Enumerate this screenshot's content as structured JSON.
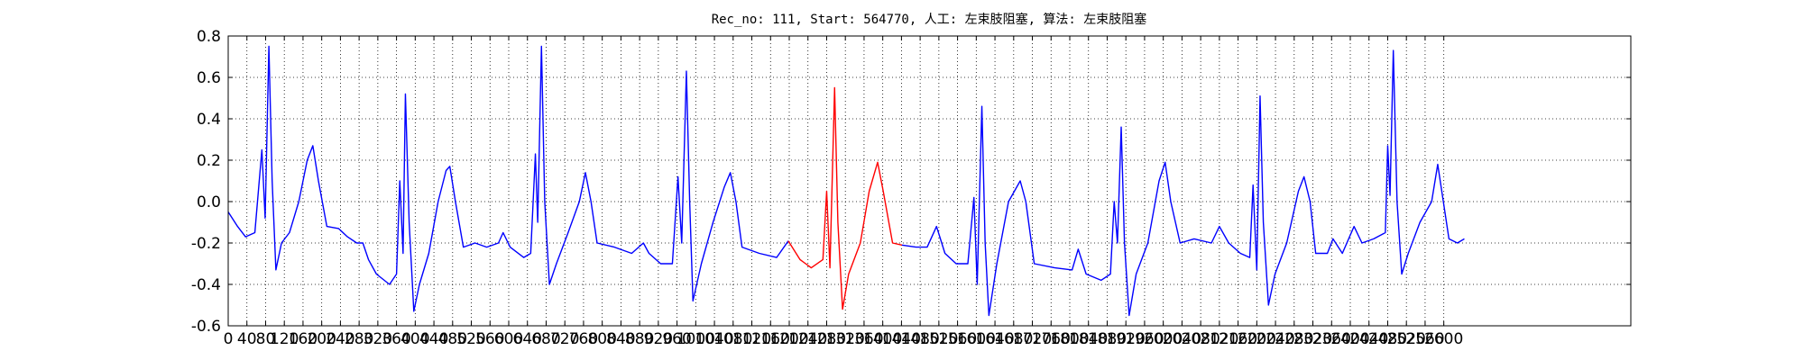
{
  "chart_data": {
    "type": "line",
    "title": "Rec_no: 111, Start: 564770, 人工: 左束肢阻塞, 算法: 左束肢阻塞",
    "xlim": [
      0,
      3000
    ],
    "ylim": [
      -0.6,
      0.8
    ],
    "xticks": [
      0,
      40,
      80,
      120,
      160,
      200,
      240,
      280,
      320,
      360,
      400,
      440,
      480,
      520,
      560,
      600,
      640,
      680,
      720,
      760,
      800,
      840,
      880,
      920,
      960,
      1000,
      1040,
      1080,
      1120,
      1160,
      1200,
      1240,
      1280,
      1320,
      1360,
      1400,
      1440,
      1480,
      1520,
      1560,
      1600,
      1640,
      1680,
      1720,
      1760,
      1800,
      1840,
      1880,
      1920,
      1960,
      2000,
      2040,
      2080,
      2120,
      2160,
      2200,
      2240,
      2280,
      2320,
      2360,
      2400,
      2440,
      2480,
      2520,
      2560,
      2600
    ],
    "yticks": [
      -0.6,
      -0.4,
      -0.2,
      {
        "value": 0,
        "label": "0.0"
      },
      0.2,
      0.4,
      0.6,
      0.8
    ],
    "grid": true,
    "series": [
      {
        "color": "#0000ff",
        "x": [
          0,
          20,
          37,
          57,
          72,
          79,
          87,
          94,
          102,
          114,
          131,
          151,
          169,
          181,
          193,
          211,
          236,
          255,
          275,
          288,
          300,
          317,
          345,
          360,
          367,
          374,
          379,
          387,
          397,
          409,
          429,
          449,
          466,
          474,
          486,
          503,
          528,
          553,
          578,
          588,
          603,
          632,
          647,
          657,
          662,
          670,
          677,
          687,
          702,
          727,
          751,
          764,
          776,
          789,
          826,
          863,
          888,
          900,
          925,
          950,
          962,
          970,
          980,
          987,
          994,
          1012,
          1037,
          1061,
          1074,
          1086,
          1099,
          1136,
          1173,
          1198,
          1320,
          1441,
          1471,
          1495,
          1515,
          1533,
          1557,
          1582,
          1595,
          1602,
          1612,
          1619,
          1627,
          1644,
          1669,
          1694,
          1706,
          1724,
          1768,
          1805,
          1818,
          1835,
          1867,
          1887,
          1895,
          1902,
          1910,
          1917,
          1927,
          1942,
          1967,
          1991,
          2004,
          2016,
          2036,
          2066,
          2103,
          2120,
          2140,
          2165,
          2185,
          2192,
          2200,
          2207,
          2214,
          2225,
          2239,
          2264,
          2289,
          2301,
          2314,
          2326,
          2351,
          2363,
          2383,
          2408,
          2425,
          2450,
          2475,
          2480,
          2485,
          2492,
          2500,
          2510,
          2524,
          2549,
          2574,
          2587,
          2599,
          2611,
          2629,
          2644
        ],
        "values": [
          -0.05,
          -0.12,
          -0.17,
          -0.15,
          0.25,
          -0.08,
          0.75,
          0.1,
          -0.33,
          -0.2,
          -0.15,
          0.0,
          0.2,
          0.27,
          0.1,
          -0.12,
          -0.13,
          -0.17,
          -0.2,
          -0.2,
          -0.28,
          -0.35,
          -0.4,
          -0.35,
          0.1,
          -0.25,
          0.52,
          -0.1,
          -0.53,
          -0.4,
          -0.25,
          0.0,
          0.15,
          0.17,
          0.0,
          -0.22,
          -0.2,
          -0.22,
          -0.2,
          -0.15,
          -0.22,
          -0.27,
          -0.25,
          0.23,
          -0.1,
          0.75,
          0.0,
          -0.4,
          -0.3,
          -0.15,
          0.0,
          0.14,
          0.0,
          -0.2,
          -0.22,
          -0.25,
          -0.2,
          -0.25,
          -0.3,
          -0.3,
          0.12,
          -0.2,
          0.63,
          0.0,
          -0.48,
          -0.3,
          -0.1,
          0.07,
          0.14,
          0.0,
          -0.22,
          -0.25,
          -0.27,
          -0.19,
          null,
          -0.21,
          -0.22,
          -0.22,
          -0.12,
          -0.25,
          -0.3,
          -0.3,
          0.02,
          -0.4,
          0.46,
          -0.2,
          -0.55,
          -0.3,
          0.0,
          0.1,
          0.0,
          -0.3,
          -0.32,
          -0.33,
          -0.23,
          -0.35,
          -0.38,
          -0.35,
          0.0,
          -0.2,
          0.36,
          -0.2,
          -0.55,
          -0.35,
          -0.2,
          0.1,
          0.19,
          0.0,
          -0.2,
          -0.18,
          -0.2,
          -0.12,
          -0.2,
          -0.25,
          -0.27,
          0.08,
          -0.33,
          0.51,
          -0.1,
          -0.5,
          -0.35,
          -0.2,
          0.05,
          0.12,
          0.0,
          -0.25,
          -0.25,
          -0.18,
          -0.25,
          -0.12,
          -0.2,
          -0.18,
          -0.15,
          0.27,
          0.03,
          0.73,
          0.0,
          -0.35,
          -0.25,
          -0.1,
          0.0,
          0.18,
          0.0,
          -0.18,
          -0.2,
          -0.18
        ]
      },
      {
        "color": "#ff0000",
        "x": [
          1198,
          1223,
          1247,
          1272,
          1280,
          1287,
          1297,
          1304,
          1314,
          1327,
          1352,
          1371,
          1389,
          1401,
          1421,
          1441
        ],
        "values": [
          -0.19,
          -0.28,
          -0.32,
          -0.28,
          0.05,
          -0.32,
          0.55,
          -0.1,
          -0.52,
          -0.35,
          -0.2,
          0.05,
          0.19,
          0.05,
          -0.2,
          -0.21
        ]
      }
    ]
  }
}
